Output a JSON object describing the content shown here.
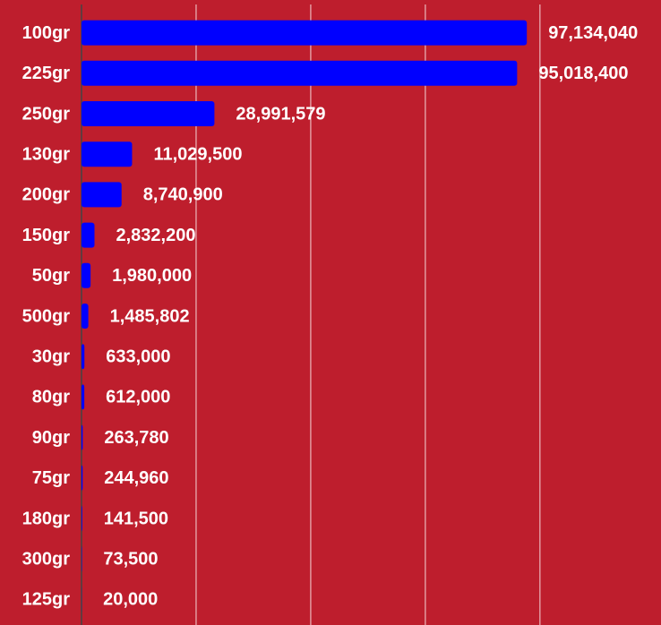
{
  "chart_data": {
    "type": "barh",
    "categories": [
      "100gr",
      "225gr",
      "250gr",
      "130gr",
      "200gr",
      "150gr",
      "50gr",
      "500gr",
      "30gr",
      "80gr",
      "90gr",
      "75gr",
      "180gr",
      "300gr",
      "125gr"
    ],
    "values": [
      97134040,
      95018400,
      28991579,
      11029500,
      8740900,
      2832200,
      1980000,
      1485802,
      633000,
      612000,
      263780,
      244960,
      141500,
      73500,
      20000
    ],
    "value_labels": [
      "97,134,040",
      "95,018,400",
      "28,991,579",
      "11,029,500",
      "8,740,900",
      "2,832,200",
      "1,980,000",
      "1,485,802",
      "633,000",
      "612,000",
      "263,780",
      "244,960",
      "141,500",
      "73,500",
      "20,000"
    ],
    "color": "#0000ff",
    "background": "#be1e2d",
    "xlim": [
      0,
      126400000
    ],
    "xticks": [
      0,
      25000000,
      50000000,
      75000000,
      100000000
    ],
    "grid": true
  }
}
